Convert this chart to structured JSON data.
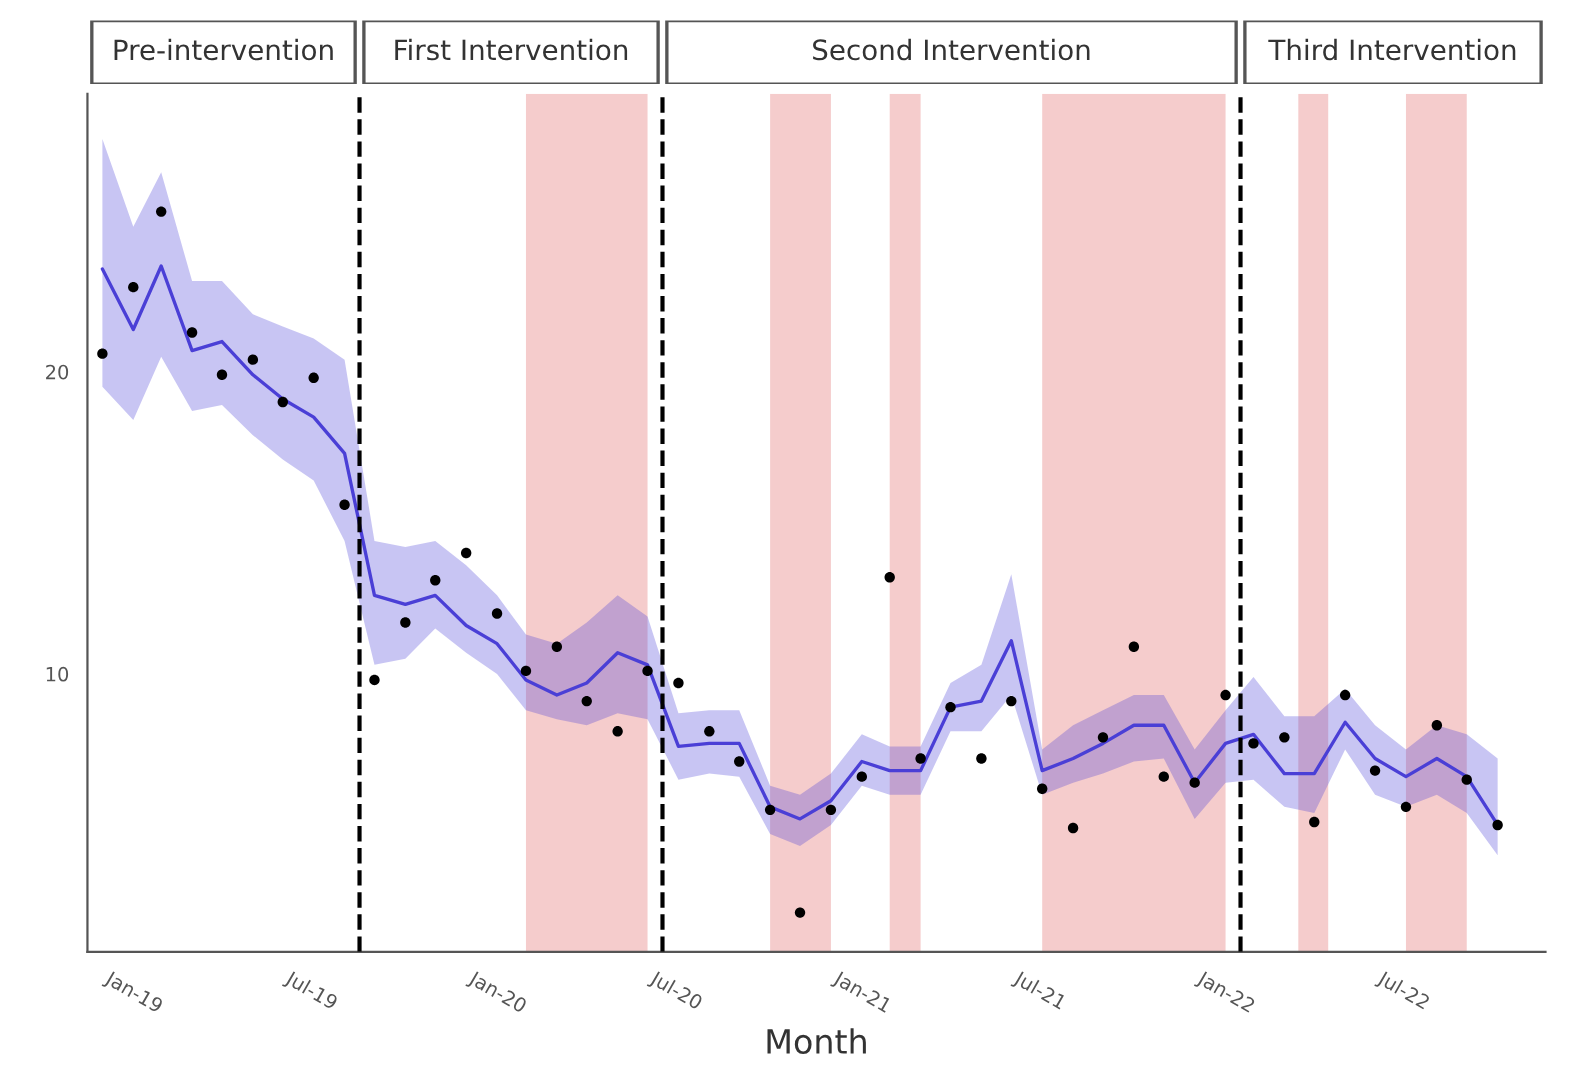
{
  "chart_data": {
    "type": "line",
    "xlabel": "Month",
    "annotations": [
      "Pre-intervention",
      "First Intervention",
      "Second Intervention",
      "Third Intervention"
    ],
    "x": [
      "2019-01",
      "2019-02",
      "2019-03",
      "2019-04",
      "2019-05",
      "2019-06",
      "2019-07",
      "2019-08",
      "2019-09",
      "2019-10",
      "2019-11",
      "2019-12",
      "2020-01",
      "2020-02",
      "2020-03",
      "2020-04",
      "2020-05",
      "2020-06",
      "2020-07",
      "2020-08",
      "2020-09",
      "2020-10",
      "2020-11",
      "2020-12",
      "2021-01",
      "2021-02",
      "2021-03",
      "2021-04",
      "2021-05",
      "2021-06",
      "2021-07",
      "2021-08",
      "2021-09",
      "2021-10",
      "2021-11",
      "2021-12",
      "2022-01",
      "2022-02",
      "2022-03",
      "2022-04",
      "2022-05",
      "2022-06",
      "2022-07",
      "2022-08",
      "2022-09",
      "2022-10",
      "2022-11"
    ],
    "series": [
      {
        "type": "scatter",
        "color": "#000000",
        "values": [
          20.6,
          22.8,
          25.3,
          21.3,
          19.9,
          20.4,
          19.0,
          19.8,
          15.6,
          9.8,
          11.7,
          13.1,
          14.0,
          12.0,
          10.1,
          10.9,
          9.1,
          8.1,
          10.1,
          9.7,
          8.1,
          7.1,
          5.5,
          2.1,
          5.5,
          6.6,
          13.2,
          7.2,
          8.9,
          7.2,
          9.1,
          6.2,
          4.9,
          7.9,
          10.9,
          6.6,
          6.4,
          9.3,
          7.7,
          7.9,
          5.1,
          9.3,
          6.8,
          5.6,
          8.3,
          6.5,
          5.0
        ]
      },
      {
        "color": "#4a3fd6",
        "values": [
          23.4,
          21.4,
          23.5,
          20.7,
          21.0,
          19.9,
          19.1,
          18.5,
          17.3,
          12.6,
          12.3,
          12.6,
          11.6,
          11.0,
          9.8,
          9.3,
          9.7,
          10.7,
          10.3,
          7.6,
          7.7,
          7.7,
          5.6,
          5.2,
          5.8,
          7.1,
          6.8,
          6.8,
          8.9,
          9.1,
          11.1,
          6.8,
          7.2,
          7.7,
          8.3,
          8.3,
          6.4,
          7.7,
          8.0,
          6.7,
          6.7,
          8.4,
          7.2,
          6.6,
          7.2,
          6.6,
          5.0
        ],
        "lower": [
          19.5,
          18.4,
          20.5,
          18.7,
          18.9,
          17.9,
          17.1,
          16.4,
          14.4,
          10.3,
          10.5,
          11.5,
          10.7,
          10.0,
          8.8,
          8.5,
          8.3,
          8.7,
          8.5,
          6.5,
          6.7,
          6.6,
          4.7,
          4.3,
          5.0,
          6.3,
          6.0,
          6.0,
          8.1,
          8.1,
          9.3,
          6.0,
          6.4,
          6.7,
          7.1,
          7.2,
          5.2,
          6.4,
          6.5,
          5.6,
          5.4,
          7.5,
          6.0,
          5.6,
          6.0,
          5.4,
          4.0
        ],
        "upper": [
          27.7,
          24.8,
          26.6,
          23.0,
          23.0,
          21.9,
          21.5,
          21.1,
          20.4,
          14.4,
          14.2,
          14.4,
          13.6,
          12.6,
          11.3,
          11.0,
          11.7,
          12.6,
          11.9,
          8.7,
          8.8,
          8.8,
          6.3,
          6.0,
          6.7,
          8.0,
          7.6,
          7.6,
          9.7,
          10.3,
          13.3,
          7.5,
          8.3,
          8.8,
          9.3,
          9.3,
          7.5,
          8.8,
          9.9,
          8.6,
          8.6,
          9.5,
          8.3,
          7.5,
          8.3,
          8.0,
          7.2
        ]
      }
    ],
    "xlim": [
      "2018-12-17",
      "2022-12-19"
    ],
    "xticks": [
      {
        "value": "2019-01",
        "label": "Jan-19"
      },
      {
        "value": "2019-07",
        "label": "Jul-19"
      },
      {
        "value": "2020-01",
        "label": "Jan-20"
      },
      {
        "value": "2020-07",
        "label": "Jul-20"
      },
      {
        "value": "2021-01",
        "label": "Jan-21"
      },
      {
        "value": "2021-07",
        "label": "Jul-21"
      },
      {
        "value": "2022-01",
        "label": "Jan-22"
      },
      {
        "value": "2022-07",
        "label": "Jul-22"
      }
    ],
    "ylim": [
      0.8,
      29.2
    ],
    "yticks": [
      10,
      20
    ],
    "ref_lines": [
      {
        "axis": "x",
        "value": "2019-09-16",
        "label": null,
        "color": "#000000",
        "line_style": "dashed"
      },
      {
        "axis": "x",
        "value": "2020-07-16",
        "label": null,
        "color": "#000000",
        "line_style": "dashed"
      },
      {
        "axis": "x",
        "value": "2022-02-16",
        "label": null,
        "color": "#000000",
        "line_style": "dashed"
      }
    ],
    "bands": [
      {
        "axis": "x",
        "from": "2020-03-01",
        "to": "2020-07-01",
        "label": null,
        "color": "#f5cccc"
      },
      {
        "axis": "x",
        "from": "2020-11-01",
        "to": "2021-01-01",
        "label": null,
        "color": "#f5cccc"
      },
      {
        "axis": "x",
        "from": "2021-03-01",
        "to": "2021-04-01",
        "label": null,
        "color": "#f5cccc"
      },
      {
        "axis": "x",
        "from": "2021-08-01",
        "to": "2022-02-01",
        "label": null,
        "color": "#f5cccc"
      },
      {
        "axis": "x",
        "from": "2022-04-15",
        "to": "2022-05-15",
        "label": null,
        "color": "#f5cccc"
      },
      {
        "axis": "x",
        "from": "2022-08-01",
        "to": "2022-10-01",
        "label": null,
        "color": "#f5cccc"
      }
    ],
    "grid": false,
    "legend": false
  }
}
